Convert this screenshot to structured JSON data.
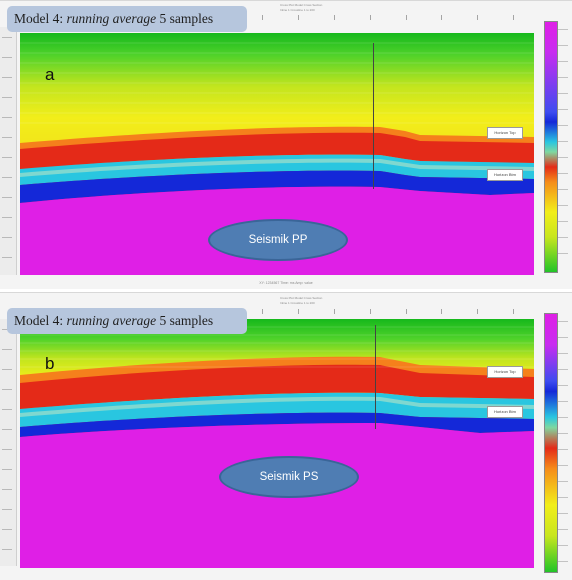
{
  "panel_a": {
    "model_label_plain": "Model 4: ",
    "model_label_italic": "running average",
    "model_label_tail": " 5 samples",
    "letter": "a",
    "seismic_label": "Seismik PP",
    "horizon_upper": "Horizon Top",
    "horizon_lower": "Horizon Btm",
    "header_line_1": "Cross Plot Model Cross Section",
    "header_line_2": "Inline 1 Crossline 1 to 200",
    "status": "XY: 1234567  Time: ms  Amp: value"
  },
  "panel_b": {
    "model_label_plain": "Model 4: ",
    "model_label_italic": "running average",
    "model_label_tail": " 5 samples",
    "letter": "b",
    "seismic_label": "Seismik PS",
    "horizon_upper": "Horizon Top",
    "horizon_lower": "Horizon Btm",
    "header_line_1": "Cross Plot Model Cross Section",
    "header_line_2": "Inline 1 Crossline 1 to 200",
    "status": ""
  },
  "colors": {
    "magenta": "#df1fe6",
    "blue": "#1428d8",
    "cyan": "#29c6e0",
    "red": "#e42a18",
    "orange": "#f58c1a",
    "yellow": "#f2ee1a",
    "yellow_green": "#c8e61e",
    "green": "#22c428",
    "label_bg": "#b6c6dd",
    "oval": "#4f7db3"
  }
}
